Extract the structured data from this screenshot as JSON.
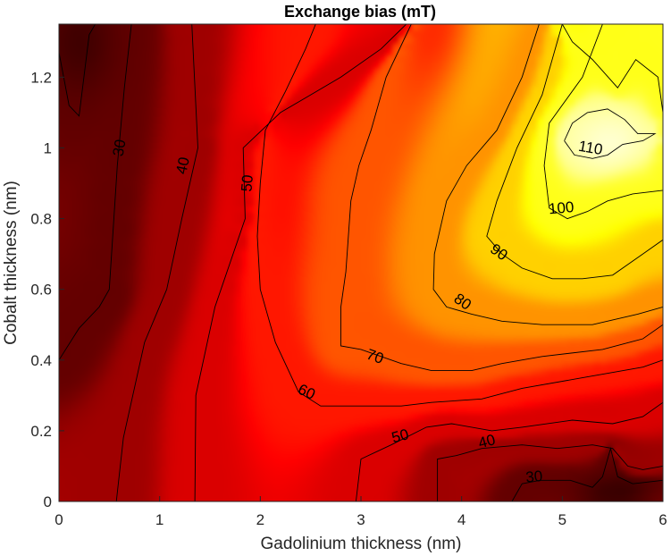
{
  "chart_data": {
    "type": "heatmap",
    "title": "Exchange bias (mT)",
    "xlabel": "Gadolinium thickness (nm)",
    "ylabel": "Cobalt thickness (nm)",
    "xlim": [
      0,
      6
    ],
    "ylim": [
      0,
      1.35
    ],
    "xticks": [
      0,
      1,
      2,
      3,
      4,
      5,
      6
    ],
    "xtick_labels": [
      "0",
      "1",
      "2",
      "3",
      "4",
      "5",
      "6"
    ],
    "yticks": [
      0,
      0.2,
      0.4,
      0.6,
      0.8,
      1,
      1.2
    ],
    "ytick_labels": [
      "0",
      "0.2",
      "0.4",
      "0.6",
      "0.8",
      "1",
      "1.2"
    ],
    "colormap": "hot",
    "color_range": [
      15,
      125
    ],
    "grid": false,
    "contour_levels": [
      30,
      40,
      50,
      60,
      70,
      80,
      90,
      100,
      110
    ],
    "contour_labels": [
      {
        "text": "30",
        "x": 0.6,
        "y": 1.0,
        "angle": -80
      },
      {
        "text": "40",
        "x": 1.23,
        "y": 0.95,
        "angle": -78
      },
      {
        "text": "50",
        "x": 1.87,
        "y": 0.9,
        "angle": -85
      },
      {
        "text": "60",
        "x": 2.46,
        "y": 0.31,
        "angle": 25
      },
      {
        "text": "70",
        "x": 3.14,
        "y": 0.41,
        "angle": 20
      },
      {
        "text": "80",
        "x": 4.01,
        "y": 0.565,
        "angle": 35
      },
      {
        "text": "90",
        "x": 4.37,
        "y": 0.705,
        "angle": 35
      },
      {
        "text": "100",
        "x": 4.99,
        "y": 0.83,
        "angle": -5
      },
      {
        "text": "110",
        "x": 5.28,
        "y": 1.0,
        "angle": 10
      },
      {
        "text": "50",
        "x": 3.39,
        "y": 0.185,
        "angle": -15
      },
      {
        "text": "40",
        "x": 4.25,
        "y": 0.17,
        "angle": -15
      },
      {
        "text": "30",
        "x": 4.72,
        "y": 0.07,
        "angle": -5
      }
    ],
    "contour_lines": [
      {
        "level": 30,
        "points": [
          [
            0,
            1.27
          ],
          [
            0.1,
            1.12
          ],
          [
            0.2,
            1.09
          ],
          [
            0.3,
            1.32
          ],
          [
            0.36,
            1.35
          ]
        ]
      },
      {
        "level": 30,
        "points": [
          [
            0,
            0.4
          ],
          [
            0.2,
            0.49
          ],
          [
            0.4,
            0.55
          ],
          [
            0.5,
            0.6
          ],
          [
            0.58,
            0.95
          ],
          [
            0.65,
            1.17
          ],
          [
            0.72,
            1.35
          ]
        ]
      },
      {
        "level": 40,
        "points": [
          [
            0.57,
            0
          ],
          [
            0.64,
            0.18
          ],
          [
            0.85,
            0.45
          ],
          [
            1.07,
            0.6
          ],
          [
            1.22,
            0.8
          ],
          [
            1.38,
            1.0
          ],
          [
            1.32,
            1.35
          ]
        ]
      },
      {
        "level": 50,
        "points": [
          [
            1.35,
            0
          ],
          [
            1.36,
            0.3
          ],
          [
            1.55,
            0.55
          ],
          [
            1.85,
            0.8
          ],
          [
            1.83,
            1.0
          ],
          [
            2.2,
            1.1
          ],
          [
            2.5,
            1.15
          ],
          [
            2.8,
            1.2
          ],
          [
            3.2,
            1.28
          ],
          [
            3.45,
            1.35
          ]
        ]
      },
      {
        "level": 50,
        "points": [
          [
            2.95,
            0
          ],
          [
            3.0,
            0.12
          ],
          [
            3.3,
            0.16
          ],
          [
            3.65,
            0.21
          ],
          [
            3.9,
            0.22
          ],
          [
            4.3,
            0.2
          ],
          [
            4.6,
            0.21
          ],
          [
            5.1,
            0.23
          ],
          [
            5.5,
            0.22
          ],
          [
            5.8,
            0.24
          ],
          [
            6.0,
            0.28
          ]
        ]
      },
      {
        "level": 60,
        "points": [
          [
            2.55,
            1.35
          ],
          [
            2.45,
            1.28
          ],
          [
            2.25,
            1.16
          ],
          [
            2.05,
            1.05
          ],
          [
            2.0,
            0.9
          ],
          [
            1.97,
            0.75
          ],
          [
            2.0,
            0.6
          ],
          [
            2.15,
            0.45
          ],
          [
            2.38,
            0.31
          ],
          [
            2.6,
            0.27
          ],
          [
            3.0,
            0.27
          ],
          [
            3.4,
            0.27
          ],
          [
            3.7,
            0.28
          ],
          [
            4.2,
            0.29
          ],
          [
            4.6,
            0.32
          ],
          [
            5.2,
            0.35
          ],
          [
            5.8,
            0.38
          ],
          [
            6.0,
            0.4
          ]
        ]
      },
      {
        "level": 70,
        "points": [
          [
            3.5,
            1.35
          ],
          [
            3.25,
            1.2
          ],
          [
            3.1,
            1.05
          ],
          [
            2.98,
            0.95
          ],
          [
            2.9,
            0.85
          ],
          [
            2.85,
            0.65
          ],
          [
            2.8,
            0.55
          ],
          [
            2.8,
            0.44
          ],
          [
            3.0,
            0.43
          ],
          [
            3.4,
            0.39
          ],
          [
            3.7,
            0.37
          ],
          [
            4.1,
            0.37
          ],
          [
            4.4,
            0.39
          ],
          [
            4.8,
            0.41
          ],
          [
            5.4,
            0.43
          ],
          [
            5.8,
            0.46
          ],
          [
            6.0,
            0.5
          ]
        ]
      },
      {
        "level": 40,
        "points": [
          [
            3.76,
            0
          ],
          [
            3.76,
            0.12
          ],
          [
            3.95,
            0.13
          ],
          [
            4.2,
            0.15
          ],
          [
            4.6,
            0.16
          ],
          [
            4.95,
            0.15
          ],
          [
            5.3,
            0.16
          ],
          [
            5.5,
            0.15
          ],
          [
            5.65,
            0.1
          ],
          [
            5.8,
            0.09
          ],
          [
            6.0,
            0.1
          ]
        ]
      },
      {
        "level": 30,
        "points": [
          [
            4.5,
            0
          ],
          [
            4.6,
            0.05
          ],
          [
            4.78,
            0.06
          ],
          [
            5.08,
            0.06
          ],
          [
            5.3,
            0.04
          ],
          [
            5.4,
            0.07
          ],
          [
            5.48,
            0.15
          ],
          [
            5.55,
            0.07
          ],
          [
            5.7,
            0.05
          ],
          [
            6.0,
            0.06
          ]
        ]
      },
      {
        "level": 80,
        "points": [
          [
            4.77,
            1.35
          ],
          [
            4.6,
            1.2
          ],
          [
            4.35,
            1.05
          ],
          [
            4.05,
            0.95
          ],
          [
            3.85,
            0.85
          ],
          [
            3.73,
            0.7
          ],
          [
            3.72,
            0.6
          ],
          [
            3.85,
            0.55
          ],
          [
            4.1,
            0.53
          ],
          [
            4.4,
            0.51
          ],
          [
            4.8,
            0.5
          ],
          [
            5.3,
            0.5
          ],
          [
            5.75,
            0.53
          ],
          [
            6.0,
            0.55
          ]
        ]
      },
      {
        "level": 90,
        "points": [
          [
            5.0,
            1.35
          ],
          [
            4.8,
            1.15
          ],
          [
            4.55,
            1.0
          ],
          [
            4.35,
            0.85
          ],
          [
            4.25,
            0.75
          ],
          [
            4.4,
            0.7
          ],
          [
            4.6,
            0.66
          ],
          [
            4.9,
            0.63
          ],
          [
            5.2,
            0.63
          ],
          [
            5.5,
            0.64
          ],
          [
            5.8,
            0.7
          ],
          [
            6.0,
            0.74
          ]
        ]
      },
      {
        "level": 100,
        "points": [
          [
            5.4,
            1.35
          ],
          [
            5.2,
            1.2
          ],
          [
            4.87,
            1.07
          ],
          [
            4.82,
            0.95
          ],
          [
            4.87,
            0.83
          ],
          [
            5.05,
            0.8
          ],
          [
            5.25,
            0.82
          ],
          [
            5.45,
            0.85
          ],
          [
            5.7,
            0.87
          ],
          [
            6.0,
            0.88
          ],
          [
            6.0,
            1.1
          ],
          [
            5.95,
            1.2
          ],
          [
            5.73,
            1.25
          ],
          [
            5.55,
            1.17
          ],
          [
            5.3,
            1.25
          ],
          [
            5.1,
            1.3
          ],
          [
            5.0,
            1.35
          ]
        ]
      },
      {
        "level": 110,
        "points": [
          [
            5.02,
            1.02
          ],
          [
            5.1,
            1.07
          ],
          [
            5.25,
            1.1
          ],
          [
            5.45,
            1.11
          ],
          [
            5.62,
            1.08
          ],
          [
            5.75,
            1.04
          ],
          [
            5.92,
            1.04
          ],
          [
            5.8,
            1.02
          ],
          [
            5.6,
            1.01
          ],
          [
            5.45,
            0.98
          ],
          [
            5.3,
            0.97
          ],
          [
            5.12,
            0.98
          ],
          [
            5.02,
            1.02
          ]
        ]
      }
    ]
  }
}
